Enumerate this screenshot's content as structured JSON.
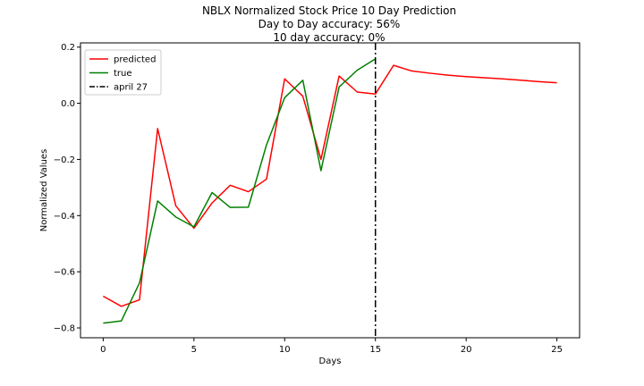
{
  "chart_data": {
    "type": "line",
    "title_lines": [
      "NBLX Normalized Stock Price 10 Day Prediction",
      "Day to Day accuracy: 56%",
      "10 day accuracy: 0%"
    ],
    "xlabel": "Days",
    "ylabel": "Normalized Values",
    "xlim": [
      -1.25,
      26.25
    ],
    "ylim": [
      -0.835,
      0.215
    ],
    "x_ticks": [
      0,
      5,
      10,
      15,
      20,
      25
    ],
    "y_ticks": [
      -0.8,
      -0.6,
      -0.4,
      -0.2,
      0.0,
      0.2
    ],
    "x_tick_labels": [
      "0",
      "5",
      "10",
      "15",
      "20",
      "25"
    ],
    "y_tick_labels": [
      "−0.8",
      "−0.6",
      "−0.4",
      "−0.2",
      "0.0",
      "0.2"
    ],
    "grid": false,
    "legend_position": "top-left",
    "series": [
      {
        "name": "predicted",
        "color": "#ff0000",
        "x": [
          0,
          1,
          2,
          3,
          4,
          5,
          6,
          7,
          8,
          9,
          10,
          11,
          12,
          13,
          14,
          15,
          16,
          17,
          18,
          19,
          20,
          21,
          22,
          23,
          24,
          25
        ],
        "values": [
          -0.687,
          -0.723,
          -0.7,
          -0.09,
          -0.365,
          -0.445,
          -0.355,
          -0.292,
          -0.315,
          -0.27,
          0.087,
          0.025,
          -0.2,
          0.097,
          0.04,
          0.033,
          0.135,
          0.115,
          0.107,
          0.1,
          0.095,
          0.091,
          0.087,
          0.082,
          0.077,
          0.073
        ]
      },
      {
        "name": "true",
        "color": "#008000",
        "x": [
          0,
          1,
          2,
          3,
          4,
          5,
          6,
          7,
          8,
          9,
          10,
          11,
          12,
          13,
          14,
          15
        ],
        "values": [
          -0.783,
          -0.775,
          -0.64,
          -0.348,
          -0.405,
          -0.44,
          -0.318,
          -0.371,
          -0.37,
          -0.148,
          0.02,
          0.082,
          -0.24,
          0.058,
          0.118,
          0.158
        ]
      }
    ],
    "vline": {
      "name": "april 27",
      "x": 15,
      "color": "#000000",
      "style": "dashdot"
    }
  }
}
